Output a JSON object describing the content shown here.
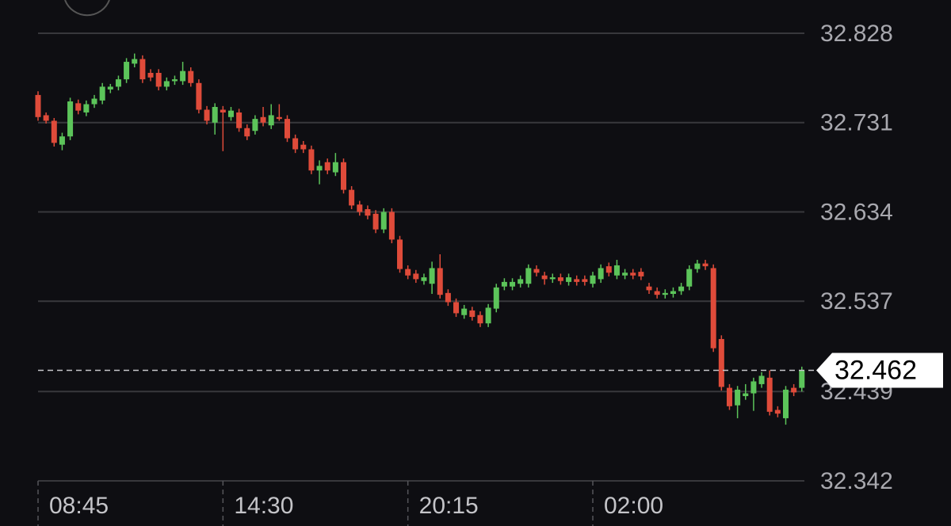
{
  "chart_data": {
    "type": "candlestick",
    "categories": [
      "08:45",
      null,
      null,
      null,
      null,
      null,
      null,
      null,
      null,
      null,
      null,
      null,
      null,
      null,
      null,
      null,
      null,
      null,
      null,
      null,
      null,
      null,
      null,
      "14:30",
      null,
      null,
      null,
      null,
      null,
      null,
      null,
      null,
      null,
      null,
      null,
      null,
      null,
      null,
      null,
      null,
      null,
      null,
      null,
      null,
      null,
      null,
      "20:15",
      null,
      null,
      null,
      null,
      null,
      null,
      null,
      null,
      null,
      null,
      null,
      null,
      null,
      null,
      null,
      null,
      null,
      null,
      null,
      null,
      null,
      null,
      "02:00",
      null,
      null,
      null,
      null,
      null,
      null,
      null,
      null,
      null,
      null,
      null,
      null,
      null,
      null,
      null,
      null,
      null,
      null,
      null,
      null,
      null,
      null,
      null,
      null,
      null,
      null
    ],
    "open": [
      32.761,
      32.739,
      32.733,
      32.707,
      32.716,
      32.752,
      32.742,
      32.751,
      32.755,
      32.767,
      32.77,
      32.778,
      32.795,
      32.8,
      32.785,
      32.785,
      32.77,
      32.776,
      32.776,
      32.787,
      32.774,
      32.745,
      32.731,
      32.745,
      32.737,
      32.742,
      32.725,
      32.722,
      32.737,
      32.728,
      32.737,
      32.735,
      32.714,
      32.707,
      32.702,
      32.679,
      32.688,
      32.677,
      32.688,
      32.658,
      32.642,
      32.637,
      32.632,
      32.615,
      32.634,
      32.604,
      32.572,
      32.567,
      32.559,
      32.556,
      32.573,
      32.546,
      32.536,
      32.522,
      32.527,
      32.522,
      32.513,
      32.529,
      32.553,
      32.553,
      32.556,
      32.556,
      32.572,
      32.565,
      32.561,
      32.563,
      32.558,
      32.561,
      32.561,
      32.556,
      32.561,
      32.575,
      32.565,
      32.565,
      32.568,
      32.569,
      32.553,
      32.548,
      32.544,
      32.545,
      32.548,
      32.553,
      32.572,
      32.578,
      32.573,
      32.496,
      32.443,
      32.424,
      32.434,
      32.437,
      32.447,
      32.454,
      32.419,
      32.41,
      32.443,
      32.443
    ],
    "high": [
      32.765,
      32.742,
      32.736,
      32.72,
      32.758,
      32.756,
      32.755,
      32.761,
      32.774,
      32.773,
      32.782,
      32.801,
      32.806,
      32.804,
      32.789,
      32.789,
      32.78,
      32.782,
      32.797,
      32.791,
      32.778,
      32.749,
      32.752,
      32.749,
      32.748,
      32.746,
      32.729,
      32.739,
      32.748,
      32.751,
      32.751,
      32.739,
      32.718,
      32.711,
      32.706,
      32.69,
      32.692,
      32.698,
      32.692,
      32.662,
      32.646,
      32.641,
      32.636,
      32.638,
      32.638,
      32.608,
      32.576,
      32.571,
      32.567,
      32.58,
      32.588,
      32.55,
      32.54,
      32.533,
      32.531,
      32.526,
      32.534,
      32.556,
      32.562,
      32.562,
      32.565,
      32.577,
      32.576,
      32.569,
      32.567,
      32.567,
      32.567,
      32.565,
      32.565,
      32.569,
      32.577,
      32.579,
      32.582,
      32.572,
      32.572,
      32.573,
      32.557,
      32.552,
      32.55,
      32.552,
      32.557,
      32.576,
      32.582,
      32.582,
      32.577,
      32.5,
      32.447,
      32.445,
      32.447,
      32.454,
      32.46,
      32.462,
      32.423,
      32.445,
      32.447,
      32.466
    ],
    "low": [
      32.733,
      32.73,
      32.705,
      32.701,
      32.712,
      32.74,
      32.738,
      32.747,
      32.751,
      32.763,
      32.766,
      32.774,
      32.791,
      32.774,
      32.776,
      32.766,
      32.766,
      32.772,
      32.772,
      32.77,
      32.741,
      32.729,
      32.718,
      32.7,
      32.733,
      32.721,
      32.712,
      32.718,
      32.727,
      32.724,
      32.733,
      32.71,
      32.698,
      32.698,
      32.675,
      32.664,
      32.675,
      32.673,
      32.654,
      32.637,
      32.63,
      32.626,
      32.611,
      32.611,
      32.6,
      32.568,
      32.561,
      32.557,
      32.555,
      32.545,
      32.54,
      32.532,
      32.52,
      32.518,
      32.516,
      32.509,
      32.509,
      32.525,
      32.549,
      32.549,
      32.552,
      32.552,
      32.564,
      32.555,
      32.557,
      32.555,
      32.554,
      32.554,
      32.554,
      32.552,
      32.557,
      32.564,
      32.561,
      32.561,
      32.561,
      32.56,
      32.545,
      32.54,
      32.54,
      32.541,
      32.544,
      32.549,
      32.568,
      32.571,
      32.482,
      32.44,
      32.419,
      32.41,
      32.43,
      32.418,
      32.443,
      32.413,
      32.411,
      32.403,
      32.434,
      32.439
    ],
    "close": [
      32.737,
      32.733,
      32.709,
      32.716,
      32.754,
      32.744,
      32.751,
      32.757,
      32.77,
      32.77,
      32.778,
      32.797,
      32.8,
      32.778,
      32.78,
      32.77,
      32.776,
      32.778,
      32.787,
      32.774,
      32.745,
      32.733,
      32.748,
      32.742,
      32.744,
      32.725,
      32.716,
      32.735,
      32.731,
      32.739,
      32.735,
      32.714,
      32.702,
      32.702,
      32.679,
      32.684,
      32.679,
      32.688,
      32.658,
      32.641,
      32.634,
      32.63,
      32.615,
      32.634,
      32.604,
      32.572,
      32.565,
      32.561,
      32.563,
      32.573,
      32.544,
      32.536,
      32.524,
      32.529,
      32.52,
      32.513,
      32.53,
      32.552,
      32.558,
      32.558,
      32.561,
      32.573,
      32.568,
      32.561,
      32.563,
      32.559,
      32.563,
      32.558,
      32.558,
      32.565,
      32.573,
      32.568,
      32.576,
      32.568,
      32.565,
      32.564,
      32.549,
      32.544,
      32.546,
      32.548,
      32.553,
      32.572,
      32.578,
      32.575,
      32.486,
      32.444,
      32.423,
      32.441,
      32.437,
      32.45,
      32.456,
      32.417,
      32.415,
      32.441,
      32.438,
      32.462
    ],
    "up_color": "#5cc45a",
    "down_color": "#df4b3a",
    "last_price": 32.462,
    "ylim": [
      32.342,
      32.828
    ],
    "yticks": [
      32.828,
      32.731,
      32.634,
      32.537,
      32.439,
      32.342
    ],
    "grid": true
  }
}
